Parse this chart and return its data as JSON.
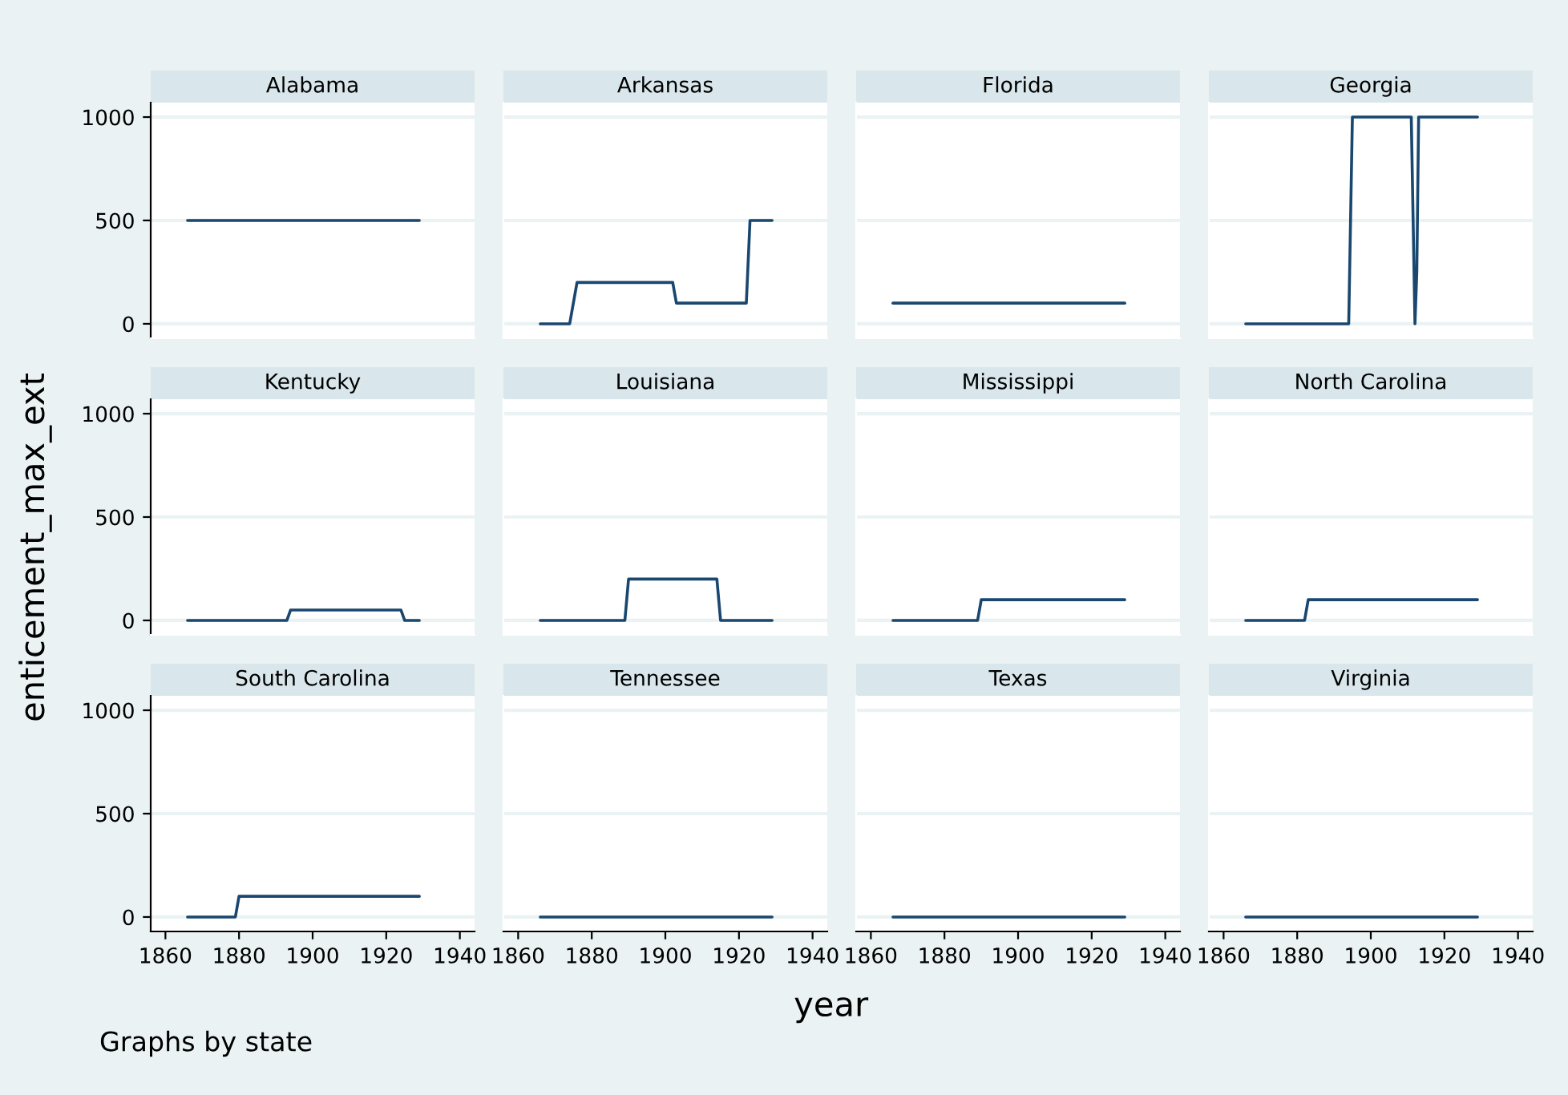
{
  "chart_data": [
    {
      "type": "line",
      "title": "Alabama",
      "x": [
        1866,
        1929
      ],
      "values": [
        500,
        500
      ],
      "color": "#1a476f",
      "xlim": [
        1856,
        1944
      ],
      "ylim": [
        -70,
        1070
      ],
      "xticks": [
        1860,
        1880,
        1900,
        1920,
        1940
      ],
      "yticks": [
        0,
        500,
        1000
      ],
      "grid": "y",
      "tick_labels": "y"
    },
    {
      "type": "line",
      "title": "Arkansas",
      "x": [
        1866,
        1874,
        1875,
        1876,
        1902,
        1903,
        1922,
        1923,
        1929
      ],
      "values": [
        0,
        0,
        100,
        200,
        200,
        100,
        100,
        500,
        500
      ],
      "color": "#1a476f",
      "xlim": [
        1856,
        1944
      ],
      "ylim": [
        -70,
        1070
      ],
      "xticks": [
        1860,
        1880,
        1900,
        1920,
        1940
      ],
      "yticks": [
        0,
        500,
        1000
      ],
      "grid": "y",
      "tick_labels": false
    },
    {
      "type": "line",
      "title": "Florida",
      "x": [
        1866,
        1929
      ],
      "values": [
        100,
        100
      ],
      "color": "#1a476f",
      "xlim": [
        1856,
        1944
      ],
      "ylim": [
        -70,
        1070
      ],
      "xticks": [
        1860,
        1880,
        1900,
        1920,
        1940
      ],
      "yticks": [
        0,
        500,
        1000
      ],
      "grid": "y",
      "tick_labels": false
    },
    {
      "type": "line",
      "title": "Georgia",
      "x": [
        1866,
        1894,
        1895,
        1911,
        1911.5,
        1912,
        1912.5,
        1913,
        1929
      ],
      "values": [
        0,
        0,
        1000,
        1000,
        500,
        0,
        250,
        1000,
        1000
      ],
      "color": "#1a476f",
      "xlim": [
        1856,
        1944
      ],
      "ylim": [
        -70,
        1070
      ],
      "xticks": [
        1860,
        1880,
        1900,
        1920,
        1940
      ],
      "yticks": [
        0,
        500,
        1000
      ],
      "grid": "y",
      "tick_labels": false
    },
    {
      "type": "line",
      "title": "Kentucky",
      "ylabel": "enticement_max_ext",
      "x": [
        1866,
        1893,
        1894,
        1924,
        1925,
        1929
      ],
      "values": [
        0,
        0,
        50,
        50,
        0,
        0
      ],
      "color": "#1a476f",
      "xlim": [
        1856,
        1944
      ],
      "ylim": [
        -70,
        1070
      ],
      "xticks": [
        1860,
        1880,
        1900,
        1920,
        1940
      ],
      "yticks": [
        0,
        500,
        1000
      ],
      "grid": "y",
      "tick_labels": "y"
    },
    {
      "type": "line",
      "title": "Louisiana",
      "x": [
        1866,
        1889,
        1890,
        1914,
        1915,
        1929
      ],
      "values": [
        0,
        0,
        200,
        200,
        0,
        0
      ],
      "color": "#1a476f",
      "xlim": [
        1856,
        1944
      ],
      "ylim": [
        -70,
        1070
      ],
      "xticks": [
        1860,
        1880,
        1900,
        1920,
        1940
      ],
      "yticks": [
        0,
        500,
        1000
      ],
      "grid": "y",
      "tick_labels": false
    },
    {
      "type": "line",
      "title": "Mississippi",
      "x": [
        1866,
        1889,
        1890,
        1929
      ],
      "values": [
        0,
        0,
        100,
        100
      ],
      "color": "#1a476f",
      "xlim": [
        1856,
        1944
      ],
      "ylim": [
        -70,
        1070
      ],
      "xticks": [
        1860,
        1880,
        1900,
        1920,
        1940
      ],
      "yticks": [
        0,
        500,
        1000
      ],
      "grid": "y",
      "tick_labels": false
    },
    {
      "type": "line",
      "title": "North Carolina",
      "x": [
        1866,
        1882,
        1883,
        1929
      ],
      "values": [
        0,
        0,
        100,
        100
      ],
      "color": "#1a476f",
      "xlim": [
        1856,
        1944
      ],
      "ylim": [
        -70,
        1070
      ],
      "xticks": [
        1860,
        1880,
        1900,
        1920,
        1940
      ],
      "yticks": [
        0,
        500,
        1000
      ],
      "grid": "y",
      "tick_labels": false
    },
    {
      "type": "line",
      "title": "South Carolina",
      "x": [
        1866,
        1879,
        1880,
        1929
      ],
      "values": [
        0,
        0,
        100,
        100
      ],
      "color": "#1a476f",
      "xlim": [
        1856,
        1944
      ],
      "ylim": [
        -70,
        1070
      ],
      "xticks": [
        1860,
        1880,
        1900,
        1920,
        1940
      ],
      "yticks": [
        0,
        500,
        1000
      ],
      "grid": "y"
    },
    {
      "type": "line",
      "title": "Tennessee",
      "xlabel": "year",
      "x": [
        1866,
        1929
      ],
      "values": [
        0,
        0
      ],
      "color": "#1a476f",
      "xlim": [
        1856,
        1944
      ],
      "ylim": [
        -70,
        1070
      ],
      "xticks": [
        1860,
        1880,
        1900,
        1920,
        1940
      ],
      "yticks": [
        0,
        500,
        1000
      ],
      "grid": "y",
      "tick_labels": "x"
    },
    {
      "type": "line",
      "title": "Texas",
      "x": [
        1866,
        1929
      ],
      "values": [
        0,
        0
      ],
      "color": "#1a476f",
      "xlim": [
        1856,
        1944
      ],
      "ylim": [
        -70,
        1070
      ],
      "xticks": [
        1860,
        1880,
        1900,
        1920,
        1940
      ],
      "yticks": [
        0,
        500,
        1000
      ],
      "grid": "y",
      "tick_labels": "x"
    },
    {
      "type": "line",
      "title": "Virginia",
      "annotations": [
        "Graphs by state"
      ],
      "x": [
        1866,
        1929
      ],
      "values": [
        0,
        0
      ],
      "color": "#1a476f",
      "xlim": [
        1856,
        1944
      ],
      "ylim": [
        -70,
        1070
      ],
      "xticks": [
        1860,
        1880,
        1900,
        1920,
        1940
      ],
      "yticks": [
        0,
        500,
        1000
      ],
      "grid": "y",
      "tick_labels": "x"
    }
  ]
}
